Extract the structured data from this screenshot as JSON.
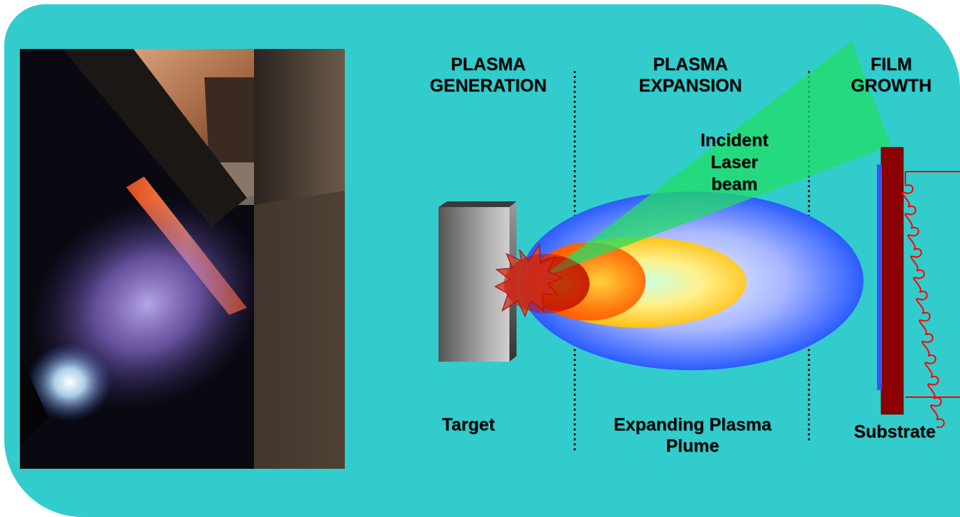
{
  "sections": {
    "generation": [
      "PLASMA",
      "GENERATION"
    ],
    "expansion": [
      "PLASMA",
      "EXPANSION"
    ],
    "growth": [
      "FILM",
      "GROWTH"
    ]
  },
  "labels": {
    "laser": [
      "Incident",
      "Laser",
      "beam"
    ],
    "target": "Target",
    "plume": [
      "Expanding Plasma",
      "Plume"
    ],
    "substrate": "Substrate"
  },
  "colors": {
    "background": "#33cccc",
    "laser_beam": "#22dd66",
    "plume_outer": "#3366ff",
    "plume_mid": "#ffcc00",
    "plume_inner": "#ff6600",
    "plume_core": "#cc2200",
    "substrate": "#8b0000",
    "film": "#3355ff",
    "heater_wire": "#ff0000",
    "target": "#888888"
  },
  "photo": {
    "subject": "plasma-plume-photograph"
  }
}
